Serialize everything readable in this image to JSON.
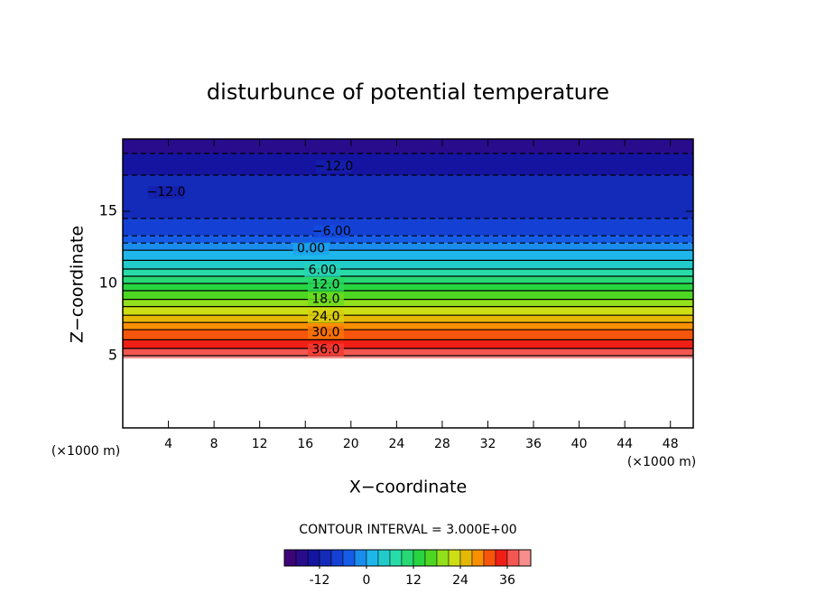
{
  "chart_data": {
    "type": "contour",
    "title": "disturbunce of potential temperature",
    "xlabel": "X−coordinate",
    "ylabel": "Z−coordinate",
    "x_unit": "(×1000 m)",
    "xlim": [
      0,
      50
    ],
    "xticks": [
      4,
      8,
      12,
      16,
      20,
      24,
      28,
      32,
      36,
      40,
      44,
      48
    ],
    "ylim": [
      0,
      20
    ],
    "yticks": [
      5,
      10,
      15
    ],
    "terrain_height": 4.8,
    "levels": [
      -15,
      -12,
      -9,
      -6,
      -3,
      0,
      3,
      6,
      9,
      12,
      15,
      18,
      21,
      24,
      27,
      30,
      33,
      36,
      39
    ],
    "level_heights": [
      19.0,
      17.5,
      14.5,
      13.3,
      12.8,
      12.3,
      11.6,
      11.0,
      10.5,
      10.0,
      9.5,
      8.9,
      8.4,
      7.8,
      7.3,
      6.8,
      6.1,
      5.5,
      5.0
    ],
    "contour_labels": {
      "values": [
        -12,
        -12,
        -6,
        0,
        6,
        12,
        18,
        24,
        30,
        36
      ],
      "value_labels": [
        "−12.0",
        "−12.0",
        "−6.00",
        "0.00",
        "6.00",
        "12.0",
        "18.0",
        "24.0",
        "30.0",
        "36.0"
      ],
      "x": [
        18.5,
        3.8,
        18.3,
        16.5,
        17.5,
        17.8,
        17.8,
        17.8,
        17.8,
        17.8
      ],
      "z": [
        18.1,
        16.3,
        13.6,
        12.4,
        10.9,
        9.9,
        8.9,
        7.7,
        6.6,
        5.4
      ]
    },
    "contour_interval": "CONTOUR INTERVAL = 3.000E+00",
    "colorbar": {
      "lim": [
        -21,
        42
      ],
      "ticks": [
        -12,
        0,
        12,
        24,
        36
      ]
    }
  }
}
